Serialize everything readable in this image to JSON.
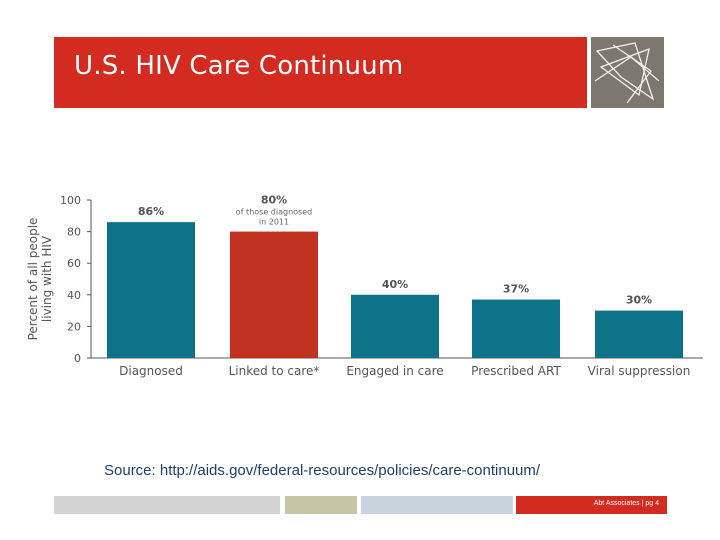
{
  "slide": {
    "title": "U.S. HIV Care Continuum",
    "source": "Source: http://aids.gov/federal-resources/policies/care-continuum/",
    "footer": "Abt Associates | pg 4"
  },
  "colors": {
    "title_bg": "#d42b20",
    "logo_bg": "#7d776e",
    "teal": "#0e7389",
    "red": "#c0311f",
    "footer_gray": "#d3d3d3",
    "footer_olive": "#c6c6a5",
    "footer_blue": "#c7d3dd",
    "footer_red": "#d42b20"
  },
  "chart_data": {
    "type": "bar",
    "categories": [
      "Diagnosed",
      "Linked to care*",
      "Engaged in care",
      "Prescribed ART",
      "Viral suppression"
    ],
    "values": [
      86,
      80,
      40,
      37,
      30
    ],
    "value_labels": [
      "86%",
      "80%",
      "40%",
      "37%",
      "30%"
    ],
    "annotations": [
      "",
      "of those diagnosed in 2011",
      "",
      "",
      ""
    ],
    "bar_colors": [
      "#0e7389",
      "#c0311f",
      "#0e7389",
      "#0e7389",
      "#0e7389"
    ],
    "ylabel": "Percent of all people living with HIV",
    "ylim": [
      0,
      100
    ],
    "yticks": [
      0,
      20,
      40,
      60,
      80,
      100
    ],
    "grid": false
  }
}
